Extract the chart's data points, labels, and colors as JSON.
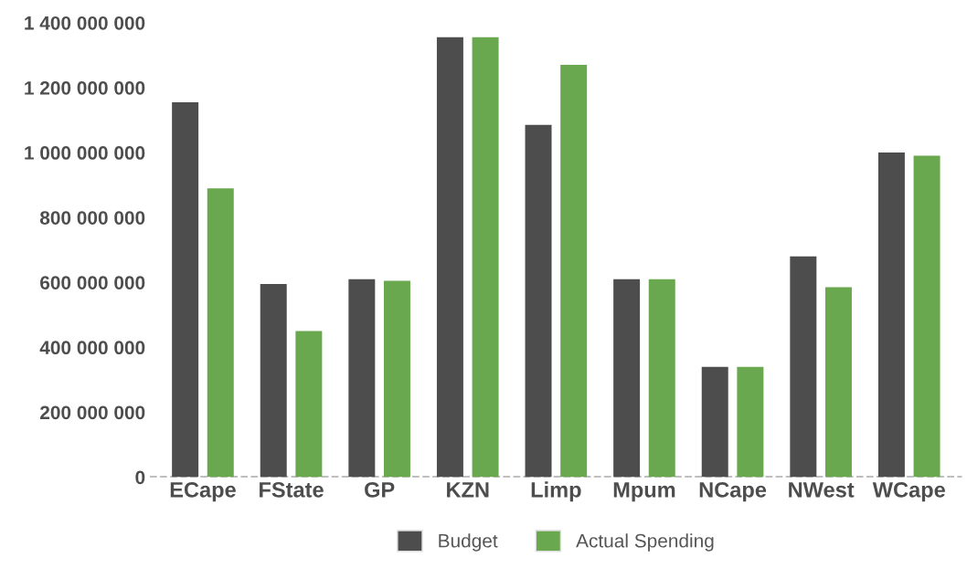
{
  "chart_data": {
    "type": "bar",
    "categories": [
      "ECape",
      "FState",
      "GP",
      "KZN",
      "Limp",
      "Mpum",
      "NCape",
      "NWest",
      "WCape"
    ],
    "series": [
      {
        "name": "Budget",
        "color": "#4d4d4d",
        "values": [
          1155000000,
          595000000,
          610000000,
          1355000000,
          1085000000,
          610000000,
          340000000,
          680000000,
          1000000000
        ]
      },
      {
        "name": "Actual Spending",
        "color": "#6aa84f",
        "values": [
          890000000,
          450000000,
          605000000,
          1355000000,
          1270000000,
          610000000,
          340000000,
          585000000,
          990000000
        ]
      }
    ],
    "ylim": [
      0,
      1400000000
    ],
    "yticks": [
      {
        "value": 0,
        "label": "0"
      },
      {
        "value": 200000000,
        "label": "200 000 000"
      },
      {
        "value": 400000000,
        "label": "400 000 000"
      },
      {
        "value": 600000000,
        "label": "600 000 000"
      },
      {
        "value": 800000000,
        "label": "800 000 000"
      },
      {
        "value": 1000000000,
        "label": "1 000 000 000"
      },
      {
        "value": 1200000000,
        "label": "1 200 000 000"
      },
      {
        "value": 1400000000,
        "label": "1 400 000 000"
      }
    ],
    "ref_lines": [
      {
        "axis": "y",
        "value": 0,
        "color": "#808080",
        "line_style": "dashed"
      }
    ],
    "grid": false,
    "legend": "bottom"
  }
}
